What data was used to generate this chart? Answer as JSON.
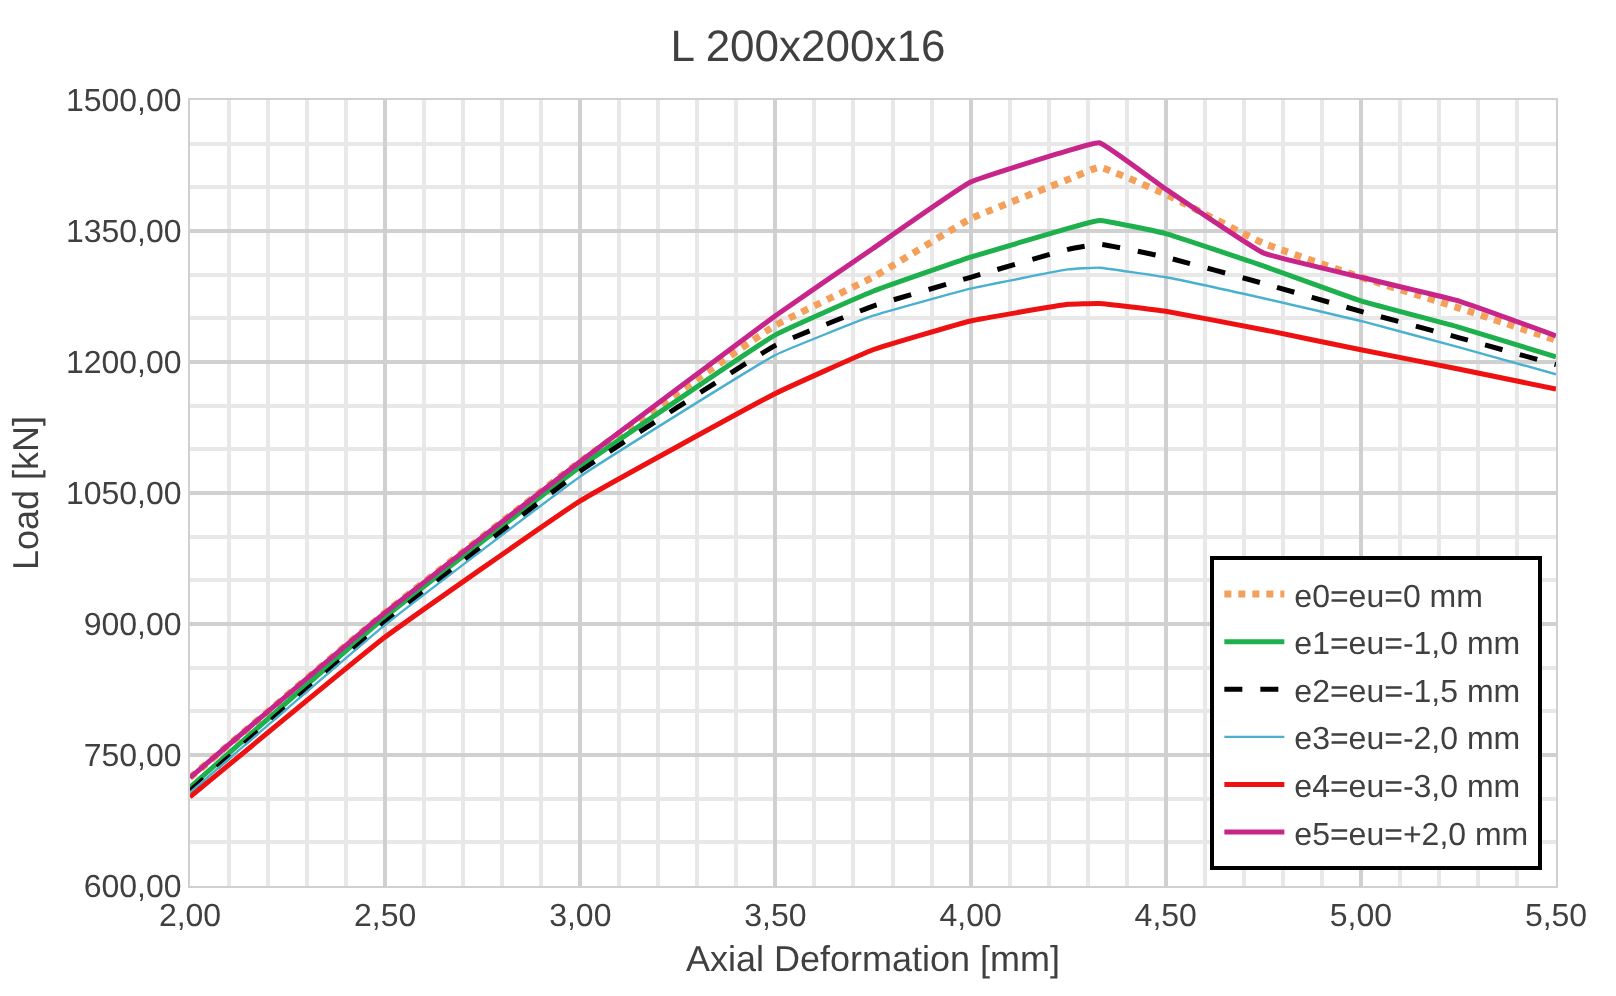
{
  "chart_data": {
    "type": "line",
    "title": "L 200x200x16",
    "xlabel": "Axial Deformation [mm]",
    "ylabel": "Load [kN]",
    "x": [
      2.0,
      2.5,
      3.0,
      3.5,
      3.75,
      4.0,
      4.25,
      4.33,
      4.5,
      4.75,
      5.0,
      5.25,
      5.5
    ],
    "series": [
      {
        "name": "e0=eu=0 mm",
        "color": "#f4a05a",
        "line_style": "dotted",
        "values": [
          724,
          913,
          1086,
          1242,
          1297,
          1364,
          1409,
          1423,
          1392,
          1336,
          1297,
          1262,
          1225
        ]
      },
      {
        "name": "e1=eu=-1,0 mm",
        "color": "#1db04c",
        "line_style": "solid",
        "values": [
          713,
          908,
          1080,
          1231,
          1281,
          1320,
          1353,
          1362,
          1347,
          1310,
          1270,
          1240,
          1206
        ]
      },
      {
        "name": "e2=eu=-1,5 mm",
        "color": "#000000",
        "line_style": "dashed",
        "values": [
          709,
          902,
          1075,
          1219,
          1264,
          1297,
          1329,
          1335,
          1320,
          1290,
          1258,
          1228,
          1197
        ]
      },
      {
        "name": "e3=eu=-2,0 mm",
        "color": "#4ab0d0",
        "line_style": "solid",
        "values": [
          707,
          899,
          1069,
          1208,
          1253,
          1284,
          1306,
          1308,
          1297,
          1273,
          1247,
          1217,
          1186
        ]
      },
      {
        "name": "e4=eu=-3,0 mm",
        "color": "#ee1111",
        "line_style": "solid",
        "values": [
          702,
          885,
          1041,
          1164,
          1214,
          1247,
          1266,
          1267,
          1258,
          1237,
          1214,
          1192,
          1169
        ]
      },
      {
        "name": "e5=eu=+2,0 mm",
        "color": "#c8258a",
        "line_style": "solid",
        "values": [
          724,
          913,
          1086,
          1253,
          1330,
          1406,
          1442,
          1451,
          1398,
          1325,
          1297,
          1270,
          1230
        ]
      }
    ],
    "xlim": [
      2.0,
      5.5
    ],
    "ylim": [
      600,
      1500
    ],
    "xticks": [
      {
        "value": 2.0,
        "label": "2,00"
      },
      {
        "value": 2.5,
        "label": "2,50"
      },
      {
        "value": 3.0,
        "label": "3,00"
      },
      {
        "value": 3.5,
        "label": "3,50"
      },
      {
        "value": 4.0,
        "label": "4,00"
      },
      {
        "value": 4.5,
        "label": "4,50"
      },
      {
        "value": 5.0,
        "label": "5,00"
      },
      {
        "value": 5.5,
        "label": "5,50"
      }
    ],
    "yticks": [
      {
        "value": 600,
        "label": "600,00"
      },
      {
        "value": 750,
        "label": "750,00"
      },
      {
        "value": 900,
        "label": "900,00"
      },
      {
        "value": 1050,
        "label": "1050,00"
      },
      {
        "value": 1200,
        "label": "1200,00"
      },
      {
        "value": 1350,
        "label": "1350,00"
      },
      {
        "value": 1500,
        "label": "1500,00"
      }
    ],
    "grid": true,
    "legend": "bottom right",
    "marker": "none"
  }
}
